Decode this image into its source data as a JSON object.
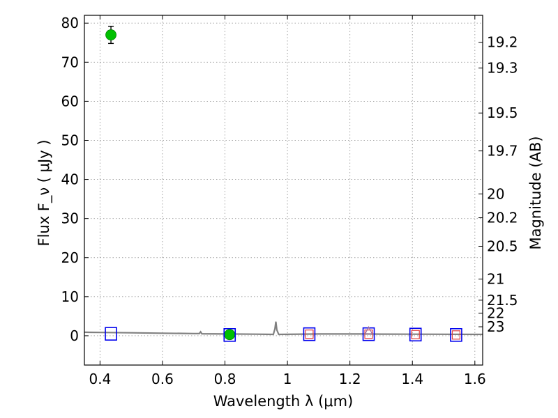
{
  "chart_data": {
    "type": "scatter",
    "xlabel": "Wavelength  λ (μm)",
    "ylabel": "Flux  F_ν  ( μJy )",
    "ylabel_right": "Magnitude (AB)",
    "xlim": [
      0.35,
      1.625
    ],
    "ylim": [
      -7.5,
      82
    ],
    "x_ticks": [
      0.4,
      0.6,
      0.8,
      1.0,
      1.2,
      1.4,
      1.6
    ],
    "x_tick_labels": [
      "0.4",
      "0.6",
      "0.8",
      "1",
      "1.2",
      "1.4",
      "1.6"
    ],
    "y_ticks": [
      0,
      10,
      20,
      30,
      40,
      50,
      60,
      70,
      80
    ],
    "y_tick_labels": [
      "0",
      "10",
      "20",
      "30",
      "40",
      "50",
      "60",
      "70",
      "80"
    ],
    "right_ticks": [
      {
        "flux": 75.1,
        "label": "19.2"
      },
      {
        "flux": 68.5,
        "label": "19.3"
      },
      {
        "flux": 57.0,
        "label": "19.5"
      },
      {
        "flux": 47.3,
        "label": "19.7"
      },
      {
        "flux": 36.3,
        "label": "20"
      },
      {
        "flux": 30.2,
        "label": "20.2"
      },
      {
        "flux": 22.9,
        "label": "20.5"
      },
      {
        "flux": 14.5,
        "label": "21"
      },
      {
        "flux": 9.1,
        "label": "21.5"
      },
      {
        "flux": 5.8,
        "label": "22"
      },
      {
        "flux": 2.3,
        "label": "23"
      }
    ],
    "grid": true,
    "series": [
      {
        "marker": "filled-circle",
        "color": "#00c000",
        "points": [
          {
            "x": 0.435,
            "y": 77.0,
            "yerr": 2.2
          },
          {
            "x": 0.815,
            "y": 0.3,
            "yerr": 0.2
          }
        ]
      },
      {
        "marker": "open-square",
        "color": "#0000ee",
        "points": [
          {
            "x": 0.435,
            "y": 0.5
          },
          {
            "x": 0.815,
            "y": 0.2
          },
          {
            "x": 1.07,
            "y": 0.4
          },
          {
            "x": 1.26,
            "y": 0.4
          },
          {
            "x": 1.41,
            "y": 0.3
          },
          {
            "x": 1.54,
            "y": 0.2
          }
        ]
      },
      {
        "marker": "open-square-small",
        "color": "#e04040",
        "points": [
          {
            "x": 1.07,
            "y": 0.4
          },
          {
            "x": 1.26,
            "y": 0.4
          },
          {
            "x": 1.41,
            "y": 0.3
          },
          {
            "x": 1.54,
            "y": 0.2
          }
        ]
      },
      {
        "marker": "open-triangle",
        "color": "#a070a0",
        "points": [
          {
            "x": 1.26,
            "y": 1.2
          }
        ]
      },
      {
        "marker": "line",
        "color": "#808080",
        "points": [
          {
            "x": 0.35,
            "y": 0.9
          },
          {
            "x": 0.4,
            "y": 0.85
          },
          {
            "x": 0.5,
            "y": 0.75
          },
          {
            "x": 0.6,
            "y": 0.65
          },
          {
            "x": 0.7,
            "y": 0.55
          },
          {
            "x": 0.718,
            "y": 0.55
          },
          {
            "x": 0.722,
            "y": 1.0
          },
          {
            "x": 0.726,
            "y": 0.5
          },
          {
            "x": 0.8,
            "y": 0.45
          },
          {
            "x": 0.9,
            "y": 0.4
          },
          {
            "x": 0.955,
            "y": 0.35
          },
          {
            "x": 0.96,
            "y": 1.8
          },
          {
            "x": 0.963,
            "y": 3.6
          },
          {
            "x": 0.966,
            "y": 1.5
          },
          {
            "x": 0.972,
            "y": 0.35
          },
          {
            "x": 1.1,
            "y": 0.45
          },
          {
            "x": 1.2,
            "y": 0.45
          },
          {
            "x": 1.25,
            "y": 0.45
          },
          {
            "x": 1.3,
            "y": 0.42
          },
          {
            "x": 1.4,
            "y": 0.4
          },
          {
            "x": 1.5,
            "y": 0.38
          },
          {
            "x": 1.625,
            "y": 0.35
          }
        ]
      }
    ]
  }
}
